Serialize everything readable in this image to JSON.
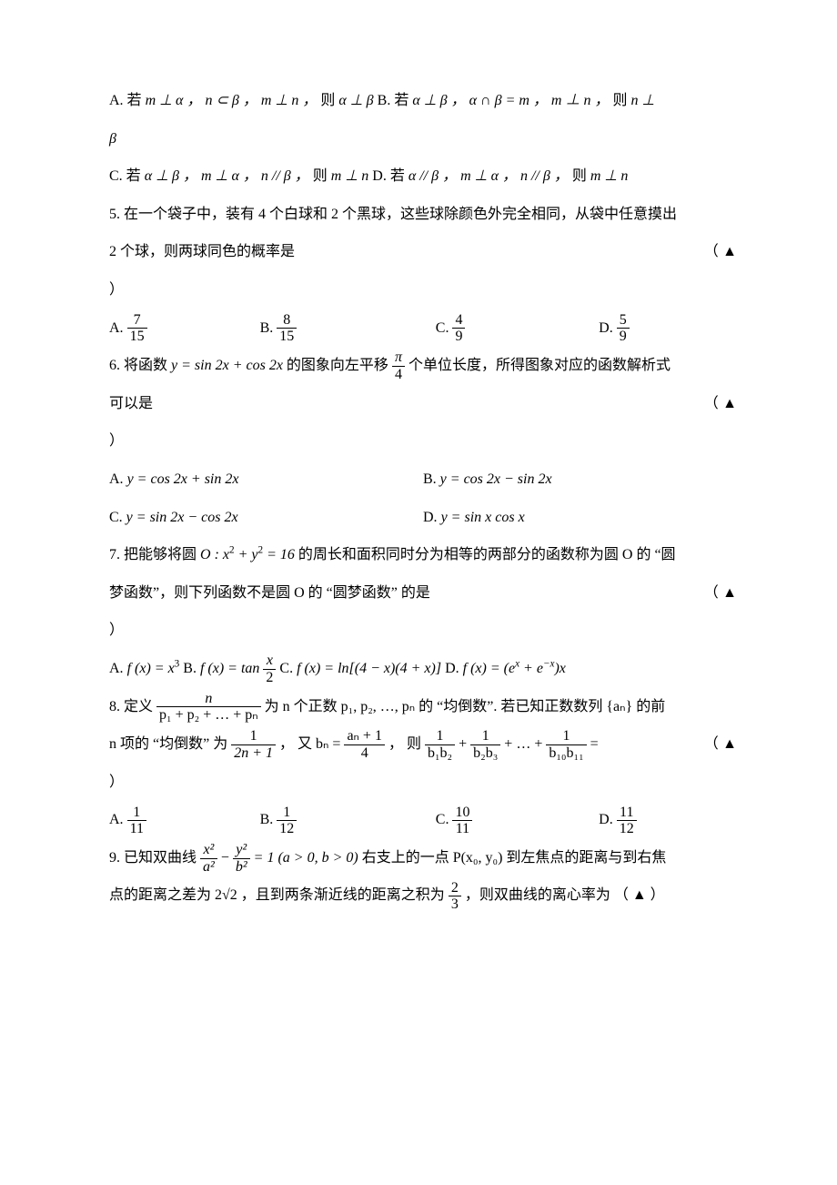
{
  "q4": {
    "optA_pre": "A. 若 ",
    "optA_math": "m ⊥ α ， n ⊂ β ， m ⊥ n ，",
    "optA_mid": " 则 ",
    "optA_concl": "α ⊥ β",
    "optB_pre": "   B. 若 ",
    "optB_math": "α ⊥ β ， α ∩ β = m ， m ⊥ n ，",
    "optB_mid": " 则 ",
    "optB_concl": "n ⊥",
    "beta_line": "β",
    "optC_pre": "C.  若 ",
    "optC_math": "α ⊥ β ， m ⊥ α ， n // β ，",
    "optC_mid": " 则 ",
    "optC_concl": "m ⊥ n",
    "optD_pre": "  D.  若 ",
    "optD_math": "α // β ， m ⊥ α ， n // β ，",
    "optD_mid": " 则 ",
    "optD_concl": "m ⊥ n"
  },
  "q5": {
    "stem1": "5. 在一个袋子中，装有 4 个白球和 2 个黑球，这些球除颜色外完全相同，从袋中任意摸出",
    "stem2a": "2 个球，则两球同色的概率是",
    "stem2b": "（  ▲",
    "close": "）",
    "A_label": "A. ",
    "A_num": "7",
    "A_den": "15",
    "B_label": "B. ",
    "B_num": "8",
    "B_den": "15",
    "C_label": "C. ",
    "C_num": "4",
    "C_den": "9",
    "D_label": "D. ",
    "D_num": "5",
    "D_den": "9"
  },
  "q6": {
    "stem_pre": "6. 将函数 ",
    "stem_math": "y = sin 2x + cos 2x",
    "stem_mid1": " 的图象向左平移 ",
    "shift_num": "π",
    "shift_den": "4",
    "stem_mid2": " 个单位长度，所得图象对应的函数解析式",
    "line2a": "可以是",
    "line2b": "（  ▲",
    "close": "）",
    "A_label": "A.   ",
    "A_math": "y = cos 2x + sin 2x",
    "B_label": "B.   ",
    "B_math": "y = cos 2x − sin 2x",
    "C_label": "C.   ",
    "C_math": "y = sin 2x − cos 2x",
    "D_label": "D.   ",
    "D_math": "y = sin x cos x"
  },
  "q7": {
    "stem_pre": "7. 把能够将圆 ",
    "circ": "O : x",
    "circ2": " + y",
    "circ3": " = 16",
    "stem_post": " 的周长和面积同时分为相等的两部分的函数称为圆 O 的 “圆",
    "line2a": "梦函数”，则下列函数不是圆 O 的 “圆梦函数” 的是",
    "line2b": "（  ▲",
    "close": "）",
    "A_label": "A. ",
    "A_math_pre": "f (x) = x",
    "A_pow": "3",
    "B_label": "   B. ",
    "B_math_pre": "f (x) = tan ",
    "B_num": "x",
    "B_den": "2",
    "C_label": "   C. ",
    "C_math": "f (x) = ln[(4 − x)(4 + x)]",
    "D_label": "   D. ",
    "D_math_pre": "f (x) = (e",
    "D_sup1": "x",
    "D_mid": " + e",
    "D_sup2": "−x",
    "D_post": ")x"
  },
  "q8": {
    "stem_pre": "8. 定义 ",
    "def_num": "n",
    "def_den": "p₁ + p₂ + … + pₙ",
    "stem_mid1": " 为 n 个正数 ",
    "p_list": "p₁, p₂, …, pₙ",
    "stem_mid2": " 的 “均倒数”. 若已知正数数列 {aₙ} 的前",
    "line2_pre": "n 项的 “均倒数” 为 ",
    "f1_num": "1",
    "f1_den": "2n + 1",
    "line2_mid1": " ， 又 ",
    "bn_lhs": "bₙ = ",
    "f2_num": "aₙ + 1",
    "f2_den": "4",
    "line2_mid2": " ， 则 ",
    "s1_num": "1",
    "s1_den": "b₁b₂",
    "plus1": " + ",
    "s2_num": "1",
    "s2_den": "b₂b₃",
    "plus2": " + … + ",
    "s3_num": "1",
    "s3_den": "b₁₀b₁₁",
    "eq": " =",
    "mark": "（  ▲",
    "close": "）",
    "A_label": "A.  ",
    "A_num": "1",
    "A_den": "11",
    "B_label": "B.  ",
    "B_num": "1",
    "B_den": "12",
    "C_label": "C.  ",
    "C_num": "10",
    "C_den": "11",
    "D_label": "D.  ",
    "D_num": "11",
    "D_den": "12"
  },
  "q9": {
    "stem_pre": "9. 已知双曲线 ",
    "t1_num": "x²",
    "t1_den": "a²",
    "minus": " − ",
    "t2_num": "y²",
    "t2_den": "b²",
    "eq1": " = 1 (a > 0, b > 0)",
    "stem_mid": " 右支上的一点 ",
    "point": "P(x₀, y₀)",
    "stem_post": " 到左焦点的距离与到右焦",
    "line2_pre": "点的距离之差为 ",
    "diff": "2√2",
    "line2_mid1": " ，且到两条渐近线的距离之积为 ",
    "prod_num": "2",
    "prod_den": "3",
    "line2_mid2": " ，则双曲线的离心率为  （  ▲  ）"
  }
}
